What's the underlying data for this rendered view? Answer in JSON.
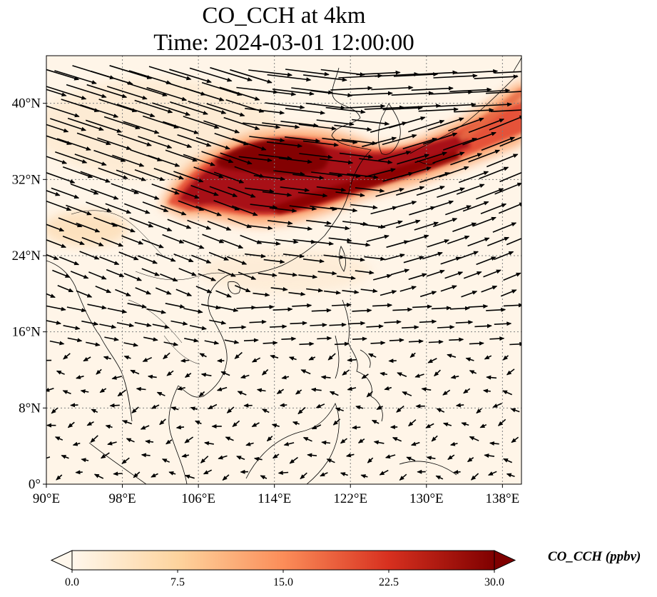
{
  "title_line1": "CO_CCH at 4km",
  "title_line2": "Time: 2024-03-01 12:00:00",
  "map": {
    "lon_range": [
      90,
      140
    ],
    "lat_range": [
      0,
      45
    ],
    "x_ticks": [
      {
        "value": 90,
        "label": "90°E"
      },
      {
        "value": 98,
        "label": "98°E"
      },
      {
        "value": 106,
        "label": "106°E"
      },
      {
        "value": 114,
        "label": "114°E"
      },
      {
        "value": 122,
        "label": "122°E"
      },
      {
        "value": 130,
        "label": "130°E"
      },
      {
        "value": 138,
        "label": "138°E"
      }
    ],
    "y_ticks": [
      {
        "value": 0,
        "label": "0°"
      },
      {
        "value": 8,
        "label": "8°N"
      },
      {
        "value": 16,
        "label": "16°N"
      },
      {
        "value": 24,
        "label": "24°N"
      },
      {
        "value": 32,
        "label": "32°N"
      },
      {
        "value": 40,
        "label": "40°N"
      }
    ],
    "gridlines": "dotted",
    "field_colormap": "OrRd",
    "plume_description_points": [
      [
        103,
        29.5,
        22
      ],
      [
        106,
        32,
        26
      ],
      [
        110,
        35,
        30
      ],
      [
        114,
        35,
        30
      ],
      [
        118,
        34,
        26
      ],
      [
        120,
        31,
        28
      ],
      [
        125,
        32,
        26
      ],
      [
        130,
        34,
        24
      ],
      [
        135,
        37,
        18
      ],
      [
        139,
        41,
        14
      ]
    ],
    "wind_vectors": "quiver"
  },
  "colorbar": {
    "label": "CO_CCH (ppbv)",
    "min": 0.0,
    "max": 30.0,
    "ticks": [
      {
        "value": 0.0,
        "label": "0.0"
      },
      {
        "value": 7.5,
        "label": "7.5"
      },
      {
        "value": 15.0,
        "label": "15.0"
      },
      {
        "value": 22.5,
        "label": "22.5"
      },
      {
        "value": 30.0,
        "label": "30.0"
      }
    ],
    "extend": "both"
  }
}
